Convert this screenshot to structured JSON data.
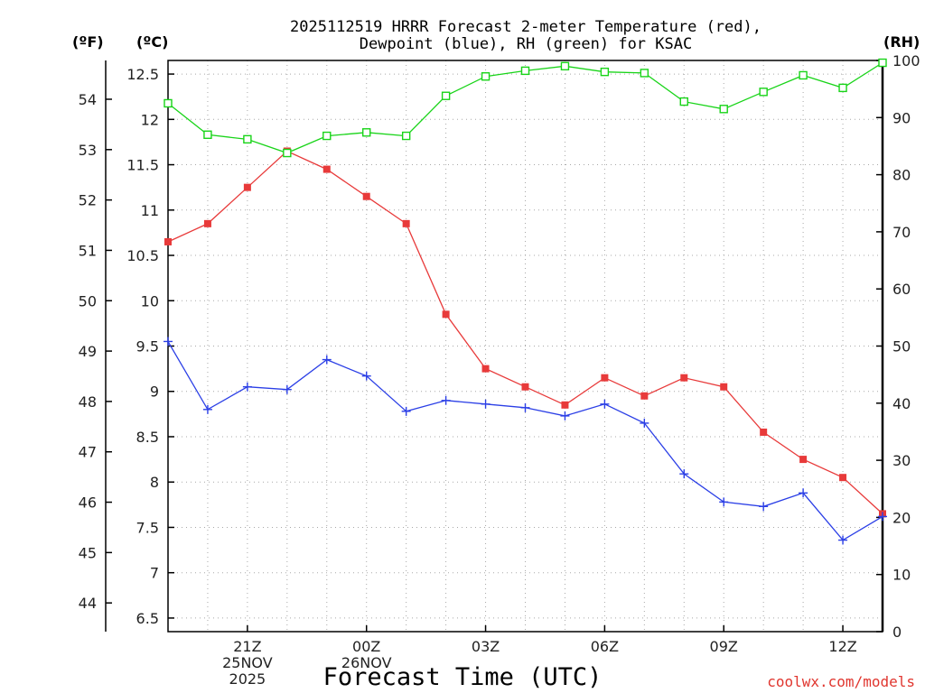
{
  "chart_data": {
    "type": "line",
    "title_line1": "2025112519 HRRR Forecast 2-meter Temperature (red),",
    "title_line2": "Dewpoint (blue), RH (green) for KSAC",
    "xlabel": "Forecast Time (UTC)",
    "credit": "coolwx.com/models",
    "unit_f": "(ºF)",
    "unit_c": "(ºC)",
    "unit_rh": "(RH)",
    "colors": {
      "temperature": "#e83a3a",
      "dewpoint": "#2b3fe6",
      "rh": "#18d418"
    },
    "x_hours_utc": [
      19,
      20,
      21,
      22,
      23,
      24,
      25,
      26,
      27,
      28,
      29,
      30,
      31,
      32,
      33,
      34,
      35,
      36,
      37
    ],
    "x_ticks": [
      {
        "hour": 21,
        "lines": [
          "21Z",
          "25NOV",
          "2025"
        ]
      },
      {
        "hour": 24,
        "lines": [
          "00Z",
          "26NOV"
        ]
      },
      {
        "hour": 27,
        "lines": [
          "03Z"
        ]
      },
      {
        "hour": 30,
        "lines": [
          "06Z"
        ]
      },
      {
        "hour": 33,
        "lines": [
          "09Z"
        ]
      },
      {
        "hour": 36,
        "lines": [
          "12Z"
        ]
      }
    ],
    "celsius_axis": {
      "range": [
        6.35,
        12.65
      ],
      "ticks": [
        "6.5",
        "7",
        "7.5",
        "8",
        "8.5",
        "9",
        "9.5",
        "10",
        "10.5",
        "11",
        "11.5",
        "12",
        "12.5"
      ]
    },
    "fahrenheit_ticks": [
      "44",
      "45",
      "46",
      "47",
      "48",
      "49",
      "50",
      "51",
      "52",
      "53",
      "54"
    ],
    "rh_axis": {
      "range": [
        0,
        100
      ],
      "ticks": [
        "0",
        "10",
        "20",
        "30",
        "40",
        "50",
        "60",
        "70",
        "80",
        "90",
        "100"
      ]
    },
    "series": [
      {
        "name": "Temperature (red)",
        "unit": "C",
        "values": [
          10.65,
          10.85,
          11.25,
          11.65,
          11.45,
          11.15,
          10.85,
          9.85,
          9.25,
          9.05,
          8.85,
          9.15,
          8.95,
          9.15,
          9.05,
          8.55,
          8.25,
          8.05,
          7.65
        ]
      },
      {
        "name": "Dewpoint (blue)",
        "unit": "C",
        "values": [
          9.55,
          8.8,
          9.05,
          9.02,
          9.35,
          9.17,
          8.78,
          8.9,
          8.86,
          8.82,
          8.73,
          8.86,
          8.65,
          8.09,
          7.78,
          7.73,
          7.88,
          7.36,
          7.62
        ]
      },
      {
        "name": "RH (green)",
        "unit": "%",
        "values": [
          92.5,
          87.0,
          86.2,
          83.8,
          86.8,
          87.4,
          86.8,
          93.8,
          97.2,
          98.2,
          99.0,
          98.0,
          97.8,
          92.8,
          91.5,
          94.5,
          97.4,
          95.2,
          99.6
        ]
      }
    ]
  }
}
